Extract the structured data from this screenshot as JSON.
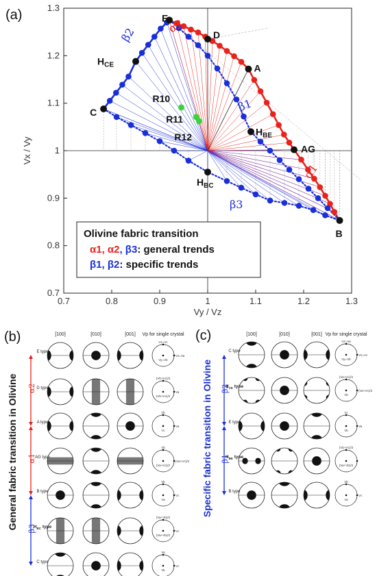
{
  "panel_labels": {
    "a": "(a)",
    "b": "(b)",
    "c": "(c)"
  },
  "colors": {
    "red": "#e8231c",
    "blue": "#1a2fd8",
    "green": "#3ad43a",
    "purple": "#7b2c9a",
    "dark": "#111111",
    "gray": "#999999"
  },
  "chart_data": {
    "type": "scatter",
    "xlabel": "Vy / Vz",
    "ylabel": "Vx / Vy",
    "xlim": [
      0.7,
      1.3
    ],
    "ylim": [
      0.7,
      1.3
    ],
    "xticks": [
      "0.7",
      "0.8",
      "0.9",
      "1",
      "1.1",
      "1.2",
      "1.3"
    ],
    "yticks": [
      "0.7",
      "0.8",
      "0.9",
      "1",
      "1.1",
      "1.2",
      "1.3"
    ],
    "grid": false,
    "reference_lines": {
      "x": 1,
      "y": 1
    },
    "key_points": [
      {
        "label": "E",
        "x": 0.92,
        "y": 1.275
      },
      {
        "label": "D",
        "x": 1.0,
        "y": 1.235
      },
      {
        "label": "A",
        "x": 1.085,
        "y": 1.172
      },
      {
        "label": "AG",
        "x": 1.18,
        "y": 1.002
      },
      {
        "label": "B",
        "x": 1.275,
        "y": 0.853
      },
      {
        "label": "C",
        "x": 0.783,
        "y": 1.088
      },
      {
        "label": "HCE",
        "x": 0.85,
        "y": 1.188
      },
      {
        "label": "HBE",
        "x": 1.09,
        "y": 1.04
      },
      {
        "label": "HBC",
        "x": 1.0,
        "y": 0.955
      }
    ],
    "samples": [
      {
        "label": "R10",
        "x": 0.945,
        "y": 1.091
      },
      {
        "label": "R11",
        "x": 0.976,
        "y": 1.071
      },
      {
        "label": "R12",
        "x": 0.982,
        "y": 1.062
      }
    ],
    "series": [
      {
        "name": "α1",
        "color": "#e8231c",
        "x": [
          1.18,
          1.195,
          1.209,
          1.222,
          1.234,
          1.245,
          1.255,
          1.264,
          1.275
        ],
        "y": [
          1.002,
          0.981,
          0.96,
          0.941,
          0.923,
          0.905,
          0.888,
          0.871,
          0.853
        ]
      },
      {
        "name": "α2",
        "color": "#e8231c",
        "x": [
          0.92,
          0.935,
          0.95,
          0.965,
          0.98,
          0.995,
          1.01,
          1.025,
          1.04,
          1.055,
          1.07,
          1.085,
          1.097,
          1.11,
          1.123,
          1.136,
          1.148,
          1.159,
          1.17,
          1.18
        ],
        "y": [
          1.275,
          1.268,
          1.262,
          1.255,
          1.249,
          1.24,
          1.231,
          1.221,
          1.21,
          1.199,
          1.187,
          1.172,
          1.149,
          1.125,
          1.101,
          1.077,
          1.054,
          1.034,
          1.017,
          1.002
        ]
      },
      {
        "name": "β1",
        "color": "#1a2fd8",
        "x": [
          0.92,
          0.94,
          0.96,
          0.98,
          1.0,
          1.02,
          1.04,
          1.06,
          1.075,
          1.09,
          1.11,
          1.13,
          1.15,
          1.17,
          1.19,
          1.21,
          1.23,
          1.25,
          1.275
        ],
        "y": [
          1.275,
          1.258,
          1.24,
          1.222,
          1.2,
          1.173,
          1.142,
          1.108,
          1.072,
          1.04,
          1.019,
          1.0,
          0.98,
          0.96,
          0.94,
          0.92,
          0.9,
          0.879,
          0.853
        ]
      },
      {
        "name": "β2",
        "color": "#1a2fd8",
        "x": [
          0.783,
          0.796,
          0.809,
          0.822,
          0.835,
          0.85,
          0.863,
          0.876,
          0.889,
          0.902,
          0.915,
          0.92
        ],
        "y": [
          1.088,
          1.105,
          1.122,
          1.139,
          1.156,
          1.188,
          1.206,
          1.223,
          1.24,
          1.257,
          1.27,
          1.275
        ]
      },
      {
        "name": "β3",
        "color": "#1a2fd8",
        "x": [
          0.783,
          0.81,
          0.84,
          0.87,
          0.9,
          0.93,
          0.96,
          1.0,
          1.04,
          1.07,
          1.1,
          1.13,
          1.16,
          1.19,
          1.22,
          1.245,
          1.275
        ],
        "y": [
          1.088,
          1.071,
          1.054,
          1.037,
          1.02,
          1.0,
          0.979,
          0.955,
          0.936,
          0.922,
          0.908,
          0.895,
          0.89,
          0.884,
          0.875,
          0.864,
          0.853
        ]
      }
    ],
    "curve_labels": {
      "a1": "α1",
      "a2": "α2",
      "b1": "β1",
      "b2": "β2",
      "b3": "β3"
    },
    "legend": {
      "title": "Olivine fabric transition",
      "line1_greek": "α1, α2, β3",
      "line1_text": ": general trends",
      "line2_greek": "β1, β2",
      "line2_text": ": specific trends"
    }
  },
  "panel_b": {
    "side_label": "General fabric transition in Olivine",
    "arrows": [
      "α2",
      "α1",
      "β3"
    ],
    "col_headers": [
      "[100]",
      "[010]",
      "[001]",
      "Vp for single crystal"
    ],
    "rows": [
      {
        "type": "E type",
        "t1": "Vz=Vc",
        "t2": "Vy=Vb",
        "t3": "Vx=Va",
        "p": [
          "bl",
          "dot",
          "bl"
        ]
      },
      {
        "type": "D type",
        "t1": "(Vb+Vc)/2",
        "t2": "(Vb+Vc)/2",
        "t3": "Va",
        "p": [
          "bl",
          "gv",
          "gv"
        ]
      },
      {
        "type": "A type",
        "t1": "Vb",
        "t2": "Vc",
        "t3": "Va",
        "p": [
          "bl",
          "tb",
          "dot"
        ]
      },
      {
        "type": "AG type",
        "t1": "Vb",
        "t2": "(Va+Vc)/2",
        "t3": "(Va+Vc)/2",
        "p": [
          "gb",
          "tb",
          "gb"
        ]
      },
      {
        "type": "B type",
        "t1": "Vb",
        "t2": "Va",
        "t3": "Vc",
        "p": [
          "dot",
          "tb",
          "bl"
        ]
      },
      {
        "type": "HBC type",
        "t1": "(Va+Vb)/2",
        "t2": "(Va+Vb)/2",
        "t3": "Vc",
        "p": [
          "gv",
          "gv",
          "bl"
        ]
      },
      {
        "type": "C type",
        "t1": "Va",
        "t2": "Vb",
        "t3": "Vc",
        "p": [
          "tb",
          "dot",
          "bl"
        ]
      }
    ]
  },
  "panel_c": {
    "side_label": "Specific fabric transition in Olivine",
    "arrows": [
      "β2",
      "β1"
    ],
    "col_headers": [
      "[100]",
      "[010]",
      "[001]",
      "Vp for single crystal"
    ],
    "rows": [
      {
        "type": "C type",
        "t1": "Vz=Va",
        "t2": "Vy=Vb",
        "t3": "Vx=Vc",
        "p": [
          "tb",
          "dot",
          "bl"
        ]
      },
      {
        "type": "HCE type",
        "t1": "(Va+Vc)/2",
        "t2": "Vb",
        "t3": "(Va+Vc)/2",
        "p": [
          "tb4",
          "dot",
          "bl4"
        ]
      },
      {
        "type": "E type",
        "t1": "Vc",
        "t2": "Vb",
        "t3": "Va",
        "p": [
          "bl",
          "dot",
          "tb"
        ]
      },
      {
        "type": "HBE type",
        "t1": "(Vb+Vc)/2",
        "t2": "(Va+Vb)/2",
        "t3": "",
        "p": [
          "bl2",
          "tb4",
          "dot"
        ]
      },
      {
        "type": "B type",
        "t1": "Vb",
        "t2": "Va",
        "t3": "Vc",
        "p": [
          "dot",
          "tb",
          "bl"
        ]
      }
    ]
  }
}
